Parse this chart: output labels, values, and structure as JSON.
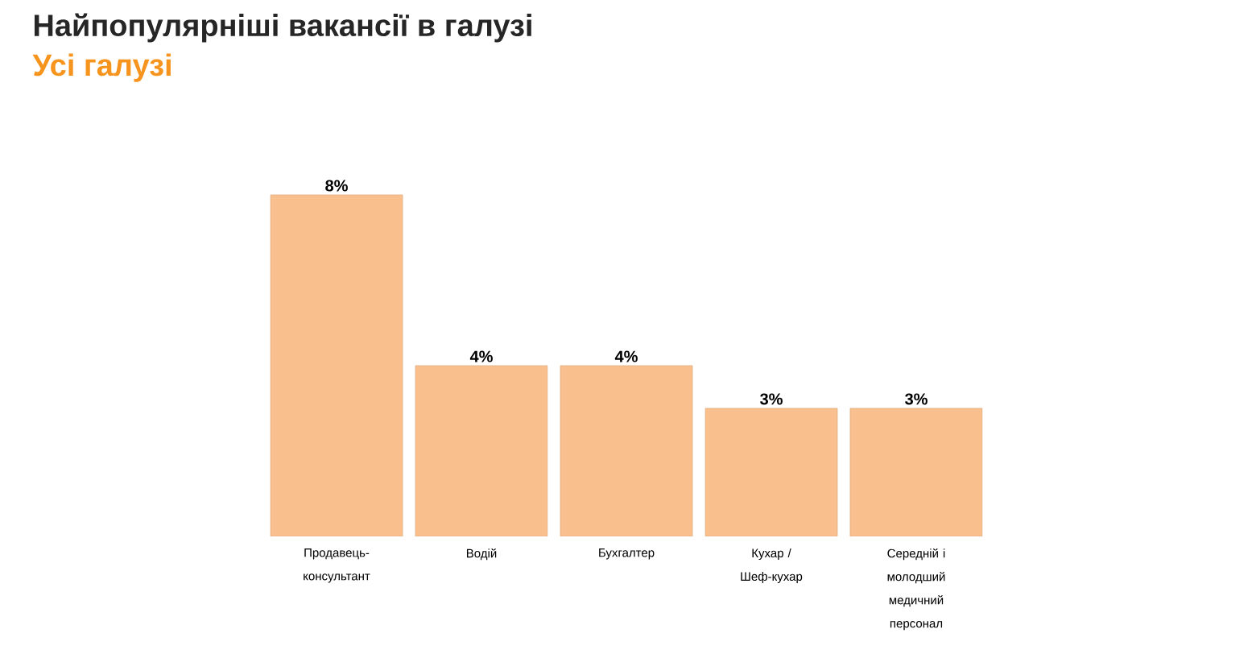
{
  "chart_data": {
    "type": "bar",
    "title": "Найпопулярніші вакансії в галузі",
    "subtitle": "Усі галузі",
    "categories": [
      "Продавець-консультант",
      "Водій",
      "Бухгалтер",
      "Кухар / Шеф-кухар",
      "Середній і молодший медичний персонал"
    ],
    "values": [
      8,
      4,
      4,
      3,
      3
    ],
    "value_labels": [
      "8%",
      "4%",
      "4%",
      "3%",
      "3%"
    ],
    "color": "#f9c08e"
  }
}
